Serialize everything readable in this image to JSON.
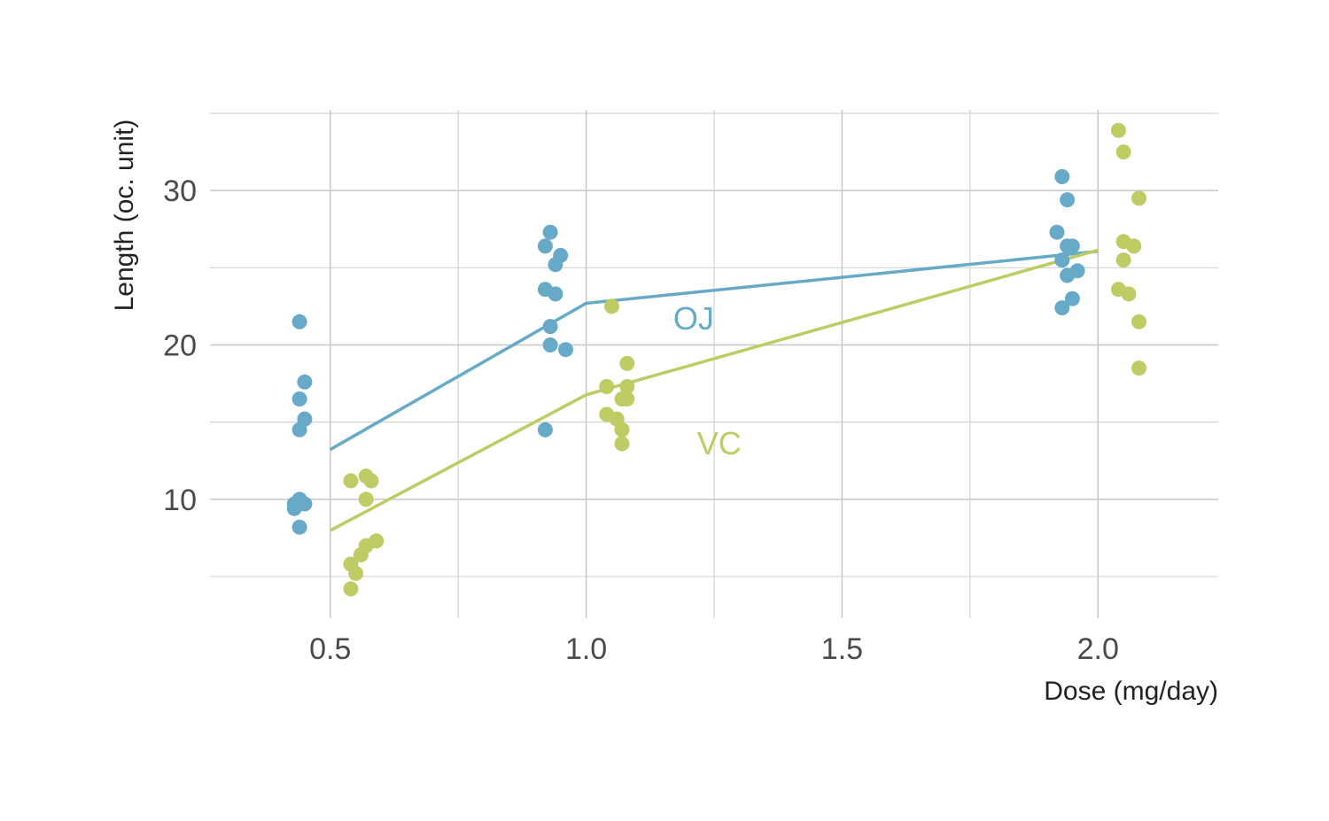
{
  "chart_data": {
    "type": "scatter",
    "xlabel": "Dose (mg/day)",
    "ylabel": "Length (oc. unit)",
    "xlim": [
      0.265,
      2.235
    ],
    "ylim": [
      2.3,
      35.0
    ],
    "x_ticks": [
      0.5,
      1.0,
      1.5,
      2.0
    ],
    "x_tick_labels": [
      "0.5",
      "1.0",
      "1.5",
      "2.0"
    ],
    "x_minor_ticks": [
      0.75,
      1.25,
      1.75
    ],
    "y_ticks": [
      10,
      20,
      30
    ],
    "y_tick_labels": [
      "10",
      "20",
      "30"
    ],
    "y_minor_ticks": [
      5,
      15,
      25,
      35
    ],
    "grid": true,
    "legend": "none",
    "series": [
      {
        "name": "OJ",
        "color": "#67aac8",
        "label_position": {
          "x": 1.21,
          "y": 21.0
        },
        "mean_line": [
          {
            "x": 0.5,
            "y": 13.23
          },
          {
            "x": 1.0,
            "y": 22.7
          },
          {
            "x": 2.0,
            "y": 26.06
          }
        ],
        "points": [
          {
            "x": 0.44,
            "y": 21.5
          },
          {
            "x": 0.45,
            "y": 17.6
          },
          {
            "x": 0.44,
            "y": 16.5
          },
          {
            "x": 0.45,
            "y": 15.2
          },
          {
            "x": 0.44,
            "y": 14.5
          },
          {
            "x": 0.44,
            "y": 10.0
          },
          {
            "x": 0.43,
            "y": 9.7
          },
          {
            "x": 0.45,
            "y": 9.7
          },
          {
            "x": 0.43,
            "y": 9.4
          },
          {
            "x": 0.44,
            "y": 8.2
          },
          {
            "x": 0.93,
            "y": 27.3
          },
          {
            "x": 0.92,
            "y": 26.4
          },
          {
            "x": 0.95,
            "y": 25.8
          },
          {
            "x": 0.94,
            "y": 25.2
          },
          {
            "x": 0.92,
            "y": 23.6
          },
          {
            "x": 0.94,
            "y": 23.3
          },
          {
            "x": 0.93,
            "y": 21.2
          },
          {
            "x": 0.93,
            "y": 20.0
          },
          {
            "x": 0.96,
            "y": 19.7
          },
          {
            "x": 0.92,
            "y": 14.5
          },
          {
            "x": 1.93,
            "y": 30.9
          },
          {
            "x": 1.94,
            "y": 29.4
          },
          {
            "x": 1.92,
            "y": 27.3
          },
          {
            "x": 1.94,
            "y": 26.4
          },
          {
            "x": 1.93,
            "y": 25.5
          },
          {
            "x": 1.96,
            "y": 24.8
          },
          {
            "x": 1.94,
            "y": 24.5
          },
          {
            "x": 1.95,
            "y": 23.0
          },
          {
            "x": 1.93,
            "y": 22.4
          },
          {
            "x": 1.95,
            "y": 26.4
          }
        ]
      },
      {
        "name": "VC",
        "color": "#bfcb63",
        "label_position": {
          "x": 1.26,
          "y": 12.9
        },
        "mean_line": [
          {
            "x": 0.5,
            "y": 7.98
          },
          {
            "x": 1.0,
            "y": 16.77
          },
          {
            "x": 2.0,
            "y": 26.14
          }
        ],
        "points": [
          {
            "x": 0.54,
            "y": 11.2
          },
          {
            "x": 0.57,
            "y": 11.5
          },
          {
            "x": 0.58,
            "y": 11.2
          },
          {
            "x": 0.57,
            "y": 10.0
          },
          {
            "x": 0.59,
            "y": 7.3
          },
          {
            "x": 0.57,
            "y": 7.0
          },
          {
            "x": 0.56,
            "y": 6.4
          },
          {
            "x": 0.54,
            "y": 5.8
          },
          {
            "x": 0.55,
            "y": 5.2
          },
          {
            "x": 0.54,
            "y": 4.2
          },
          {
            "x": 1.05,
            "y": 22.5
          },
          {
            "x": 1.08,
            "y": 18.8
          },
          {
            "x": 1.04,
            "y": 17.3
          },
          {
            "x": 1.08,
            "y": 17.3
          },
          {
            "x": 1.07,
            "y": 16.5
          },
          {
            "x": 1.08,
            "y": 16.5
          },
          {
            "x": 1.04,
            "y": 15.5
          },
          {
            "x": 1.06,
            "y": 15.2
          },
          {
            "x": 1.07,
            "y": 14.5
          },
          {
            "x": 1.07,
            "y": 13.6
          },
          {
            "x": 2.04,
            "y": 33.9
          },
          {
            "x": 2.05,
            "y": 32.5
          },
          {
            "x": 2.08,
            "y": 29.5
          },
          {
            "x": 2.05,
            "y": 26.7
          },
          {
            "x": 2.07,
            "y": 26.4
          },
          {
            "x": 2.05,
            "y": 25.5
          },
          {
            "x": 2.04,
            "y": 23.6
          },
          {
            "x": 2.06,
            "y": 23.3
          },
          {
            "x": 2.08,
            "y": 21.5
          },
          {
            "x": 2.08,
            "y": 18.5
          }
        ]
      }
    ]
  }
}
